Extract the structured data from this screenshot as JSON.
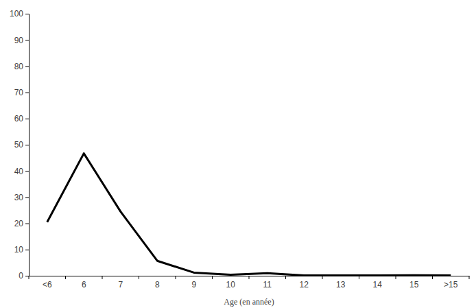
{
  "chart_data": {
    "type": "line",
    "x_label": "Age (en année)",
    "categories": [
      "<6",
      "6",
      "7",
      "8",
      "9",
      "10",
      "11",
      "12",
      "13",
      "14",
      "15",
      ">15"
    ],
    "values": [
      20.5,
      46.7,
      24.5,
      5.7,
      1.2,
      0.4,
      1.0,
      0.1,
      0.1,
      0.1,
      0.2,
      0.1
    ],
    "color": "#000000",
    "ylim": [
      0,
      100
    ],
    "yticks": [
      0,
      10,
      20,
      30,
      40,
      50,
      60,
      70,
      80,
      90,
      100
    ]
  }
}
